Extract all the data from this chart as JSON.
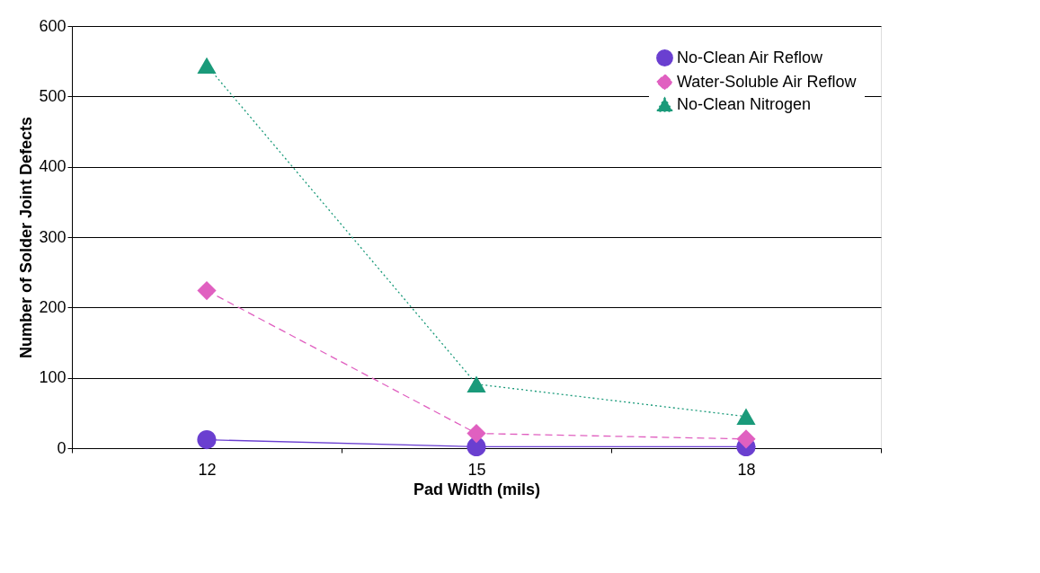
{
  "chart_data": {
    "type": "line",
    "xlabel": "Pad Width (mils)",
    "ylabel": "Number of Solder Joint Defects",
    "categories": [
      "12",
      "15",
      "18"
    ],
    "ylim": [
      0,
      600
    ],
    "yticks": [
      0,
      100,
      200,
      300,
      400,
      500,
      600
    ],
    "grid": "y",
    "legend": "top right",
    "series": [
      {
        "name": "No-Clean Air Reflow",
        "color": "#6a3fd0",
        "values": [
          12,
          2,
          2
        ],
        "marker": "circle",
        "line_style": "solid"
      },
      {
        "name": "Water-Soluble Air Reflow",
        "color": "#e060c0",
        "values": [
          224,
          21,
          13
        ],
        "marker": "diamond",
        "line_style": "dashed"
      },
      {
        "name": "No-Clean Nitrogen",
        "color": "#1a9a7a",
        "values": [
          544,
          91,
          45
        ],
        "marker": "triangle",
        "line_style": "dotted"
      }
    ]
  }
}
